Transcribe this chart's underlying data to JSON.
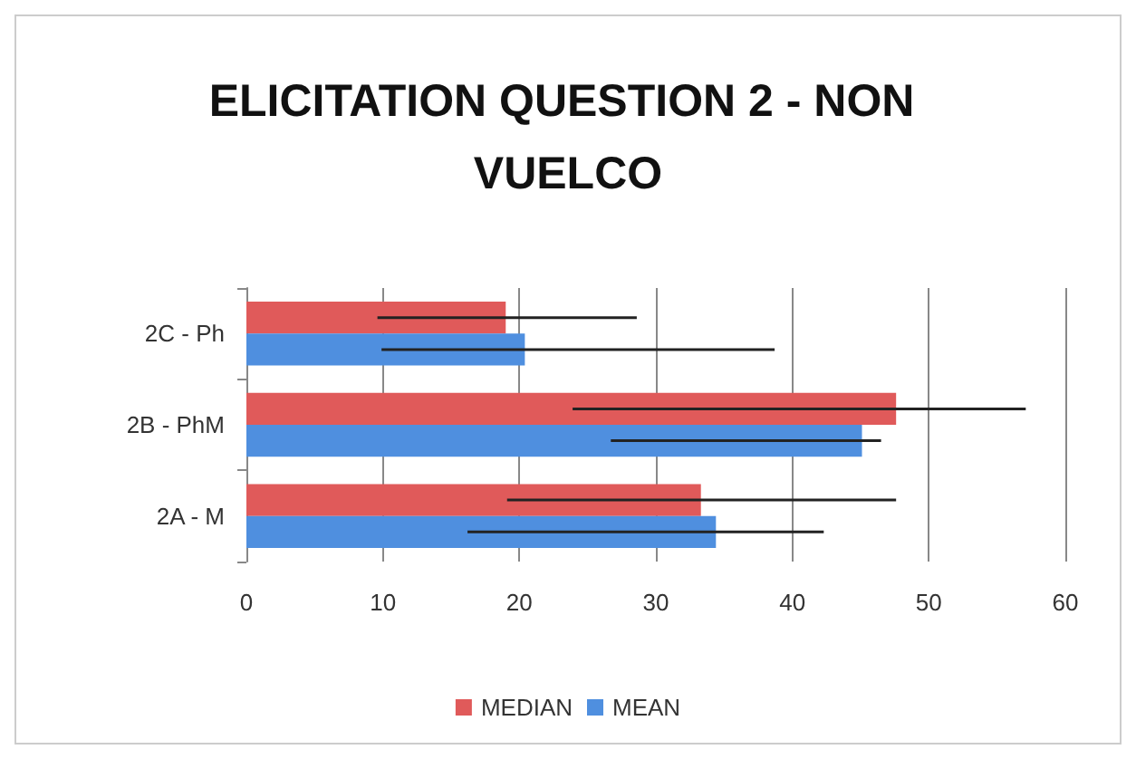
{
  "chart_data": {
    "type": "bar",
    "orientation": "horizontal",
    "title": "ELICITATION QUESTION 2 - NON VUELCO",
    "categories": [
      "2C - Ph",
      "2B - PhM",
      "2A - M"
    ],
    "series": [
      {
        "name": "MEDIAN",
        "color": "#e05a5a",
        "values": [
          19.0,
          47.6,
          33.3
        ],
        "errors": [
          [
            9.6,
            28.6
          ],
          [
            23.9,
            57.1
          ],
          [
            19.1,
            47.6
          ]
        ]
      },
      {
        "name": "MEAN",
        "color": "#4f8fdf",
        "values": [
          20.4,
          45.1,
          34.4
        ],
        "errors": [
          [
            9.9,
            38.7
          ],
          [
            26.7,
            46.5
          ],
          [
            16.2,
            42.3
          ]
        ]
      }
    ],
    "xlim": [
      0,
      60
    ],
    "xticks": [
      0,
      10,
      20,
      30,
      40,
      50,
      60
    ],
    "grid": "x",
    "legend": "bottom"
  }
}
